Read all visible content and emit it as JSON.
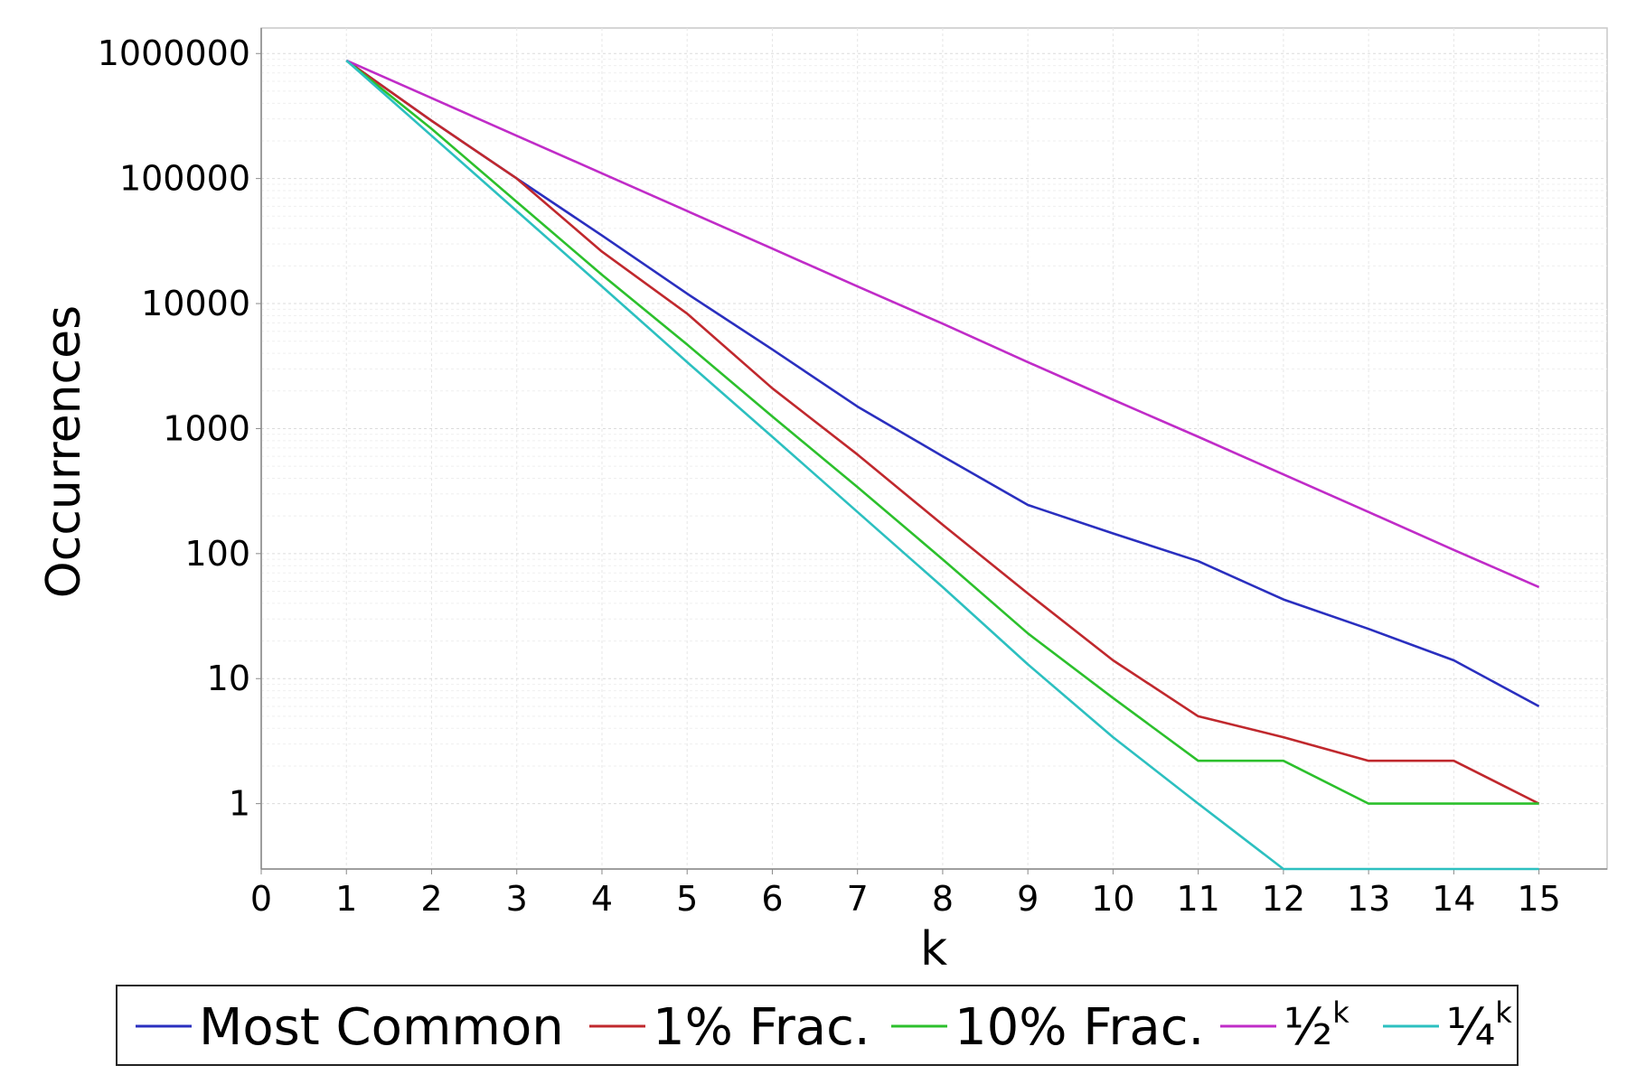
{
  "chart_data": {
    "type": "line",
    "xlabel": "k",
    "ylabel": "Occurrences",
    "xlim": [
      0,
      15.8
    ],
    "x_ticks": [
      "0",
      "1",
      "2",
      "3",
      "4",
      "5",
      "6",
      "7",
      "8",
      "9",
      "10",
      "11",
      "12",
      "13",
      "14",
      "15"
    ],
    "y_scale": "log",
    "ylim": [
      0.3,
      1600000
    ],
    "y_ticks": [
      {
        "value": 1,
        "label": "1"
      },
      {
        "value": 10,
        "label": "10"
      },
      {
        "value": 100,
        "label": "100"
      },
      {
        "value": 1000,
        "label": "1000"
      },
      {
        "value": 10000,
        "label": "10000"
      },
      {
        "value": 100000,
        "label": "100000"
      },
      {
        "value": 1000000,
        "label": "1000000"
      }
    ],
    "grid": true,
    "legend_position": "bottom",
    "x": [
      1,
      2,
      3,
      4,
      5,
      6,
      7,
      8,
      9,
      10,
      11,
      12,
      13,
      14,
      15
    ],
    "series": [
      {
        "name": "Most Common",
        "color": "#2a2fbf",
        "values": [
          880000,
          290000,
          100000,
          35000,
          12000,
          4300,
          1500,
          600,
          245,
          145,
          87,
          43,
          25,
          14,
          6
        ]
      },
      {
        "name": "1% Frac.",
        "color": "#c0282d",
        "values": [
          880000,
          290000,
          100000,
          26000,
          8300,
          2100,
          620,
          170,
          48,
          14,
          5,
          3.4,
          2.2,
          2.2,
          1
        ]
      },
      {
        "name": "10% Frac.",
        "color": "#2cc02c",
        "values": [
          880000,
          250000,
          65000,
          17000,
          4700,
          1250,
          340,
          90,
          23,
          7,
          2.2,
          2.2,
          1,
          1,
          1
        ]
      },
      {
        "name": "½",
        "name_sup": "k",
        "color": "#c02cc8",
        "values": [
          880000,
          440000,
          220000,
          110000,
          55000,
          27500,
          13700,
          6900,
          3400,
          1700,
          860,
          430,
          215,
          107,
          54
        ]
      },
      {
        "name": "¼",
        "name_sup": "k",
        "color": "#2cc0c0",
        "values": [
          880000,
          220000,
          55000,
          13700,
          3400,
          860,
          215,
          54,
          13,
          3.4,
          1,
          0.3,
          0.3,
          0.3,
          0.3
        ]
      }
    ]
  }
}
